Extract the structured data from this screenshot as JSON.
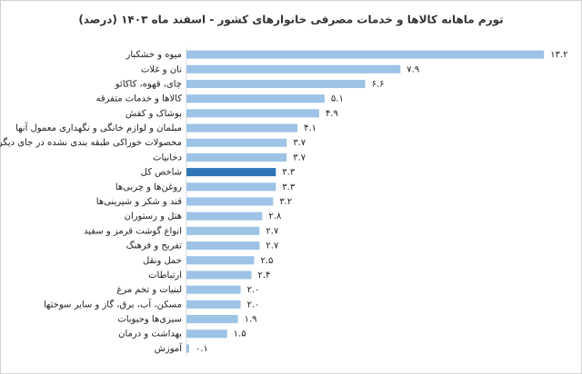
{
  "chart_data": {
    "type": "barh",
    "title": "تورم ماهانه کالاها و خدمات مصرفی خانوارهای کشور - اسفند ماه ۱۴۰۳ (درصد)",
    "categories": [
      "میوه و خشکبار",
      "نان و غلات",
      "چای، قهوه، کاکائو",
      "کالاها و خدمات متفرقه",
      "پوشاک و کفش",
      "مبلمان و لوازم خانگی و نگهداری معمول آنها",
      "محصولات خوراکی طبقه بندی نشده در جای دیگر",
      "دخانیات",
      "شاخص کل",
      "روغن‌ها و چربی‌ها",
      "قند و شکر و شیرینی‌ها",
      "هتل و رستوران",
      "انواع گوشت قرمز و سفید",
      "تفریح و فرهنگ",
      "حمل ونقل",
      "ارتباطات",
      "لبنیات و تخم مرغ",
      "مسکن، آب، برق، گاز و سایر سوختها",
      "سبزی‌ها وحبوبات",
      "بهداشت و درمان",
      "آموزش"
    ],
    "values": [
      13.2,
      7.9,
      6.6,
      5.1,
      4.9,
      4.1,
      3.7,
      3.7,
      3.3,
      3.3,
      3.2,
      2.8,
      2.7,
      2.7,
      2.5,
      2.4,
      2.0,
      2.0,
      1.9,
      1.5,
      0.1
    ],
    "value_labels": [
      "۱۳.۲",
      "۷.۹",
      "۶.۶",
      "۵.۱",
      "۴.۹",
      "۴.۱",
      "۳.۷",
      "۳.۷",
      "۳.۳",
      "۳.۳",
      "۳.۲",
      "۲.۸",
      "۲.۷",
      "۲.۷",
      "۲.۵",
      "۲.۴",
      "۲.۰",
      "۲.۰",
      "۱.۹",
      "۱.۵",
      "۰.۱"
    ],
    "colors": [
      "#9dc3e6",
      "#9dc3e6",
      "#9dc3e6",
      "#9dc3e6",
      "#9dc3e6",
      "#9dc3e6",
      "#9dc3e6",
      "#9dc3e6",
      "#2e75b6",
      "#9dc3e6",
      "#9dc3e6",
      "#9dc3e6",
      "#9dc3e6",
      "#9dc3e6",
      "#9dc3e6",
      "#9dc3e6",
      "#9dc3e6",
      "#9dc3e6",
      "#9dc3e6",
      "#9dc3e6",
      "#9dc3e6"
    ],
    "xlim": [
      0,
      14
    ]
  }
}
